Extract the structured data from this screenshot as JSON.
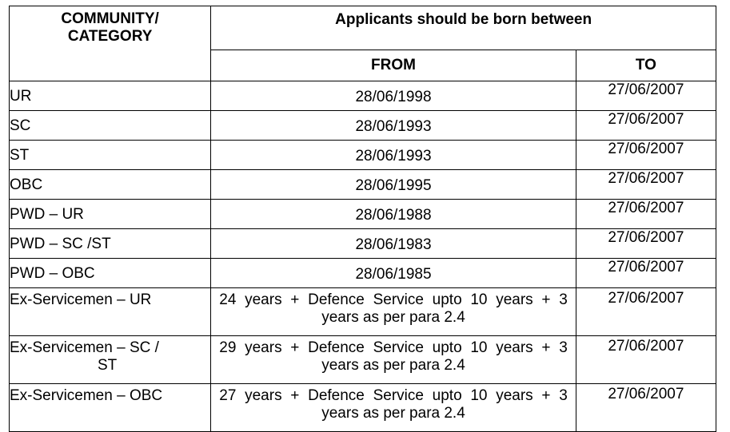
{
  "table": {
    "header": {
      "category_line1": "COMMUNITY/",
      "category_line2": "CATEGORY",
      "span_title": "Applicants should be born between",
      "from_label": "FROM",
      "to_label": "TO"
    },
    "rows": [
      {
        "category": "UR",
        "from": "28/06/1998",
        "to": "27/06/2007"
      },
      {
        "category": "SC",
        "from": "28/06/1993",
        "to": "27/06/2007"
      },
      {
        "category": "ST",
        "from": "28/06/1993",
        "to": "27/06/2007"
      },
      {
        "category": "OBC",
        "from": "28/06/1995",
        "to": "27/06/2007"
      },
      {
        "category": "PWD – UR",
        "from": "28/06/1988",
        "to": "27/06/2007"
      },
      {
        "category": "PWD – SC /ST",
        "from": "28/06/1983",
        "to": "27/06/2007"
      },
      {
        "category": "PWD – OBC",
        "from": "28/06/1985",
        "to": "27/06/2007"
      },
      {
        "category": "Ex-Servicemen – UR",
        "from": "24 years + Defence Service upto 10 years + 3 years as per para 2.4",
        "to": "27/06/2007"
      },
      {
        "category_line1": "Ex-Servicemen – SC /",
        "category_line2": "ST",
        "from": "29 years + Defence Service upto 10 years + 3 years as per para 2.4",
        "to": "27/06/2007"
      },
      {
        "category": "Ex-Servicemen – OBC",
        "from": "27 years + Defence Service upto 10 years + 3 years as per para 2.4",
        "to": "27/06/2007"
      }
    ]
  }
}
